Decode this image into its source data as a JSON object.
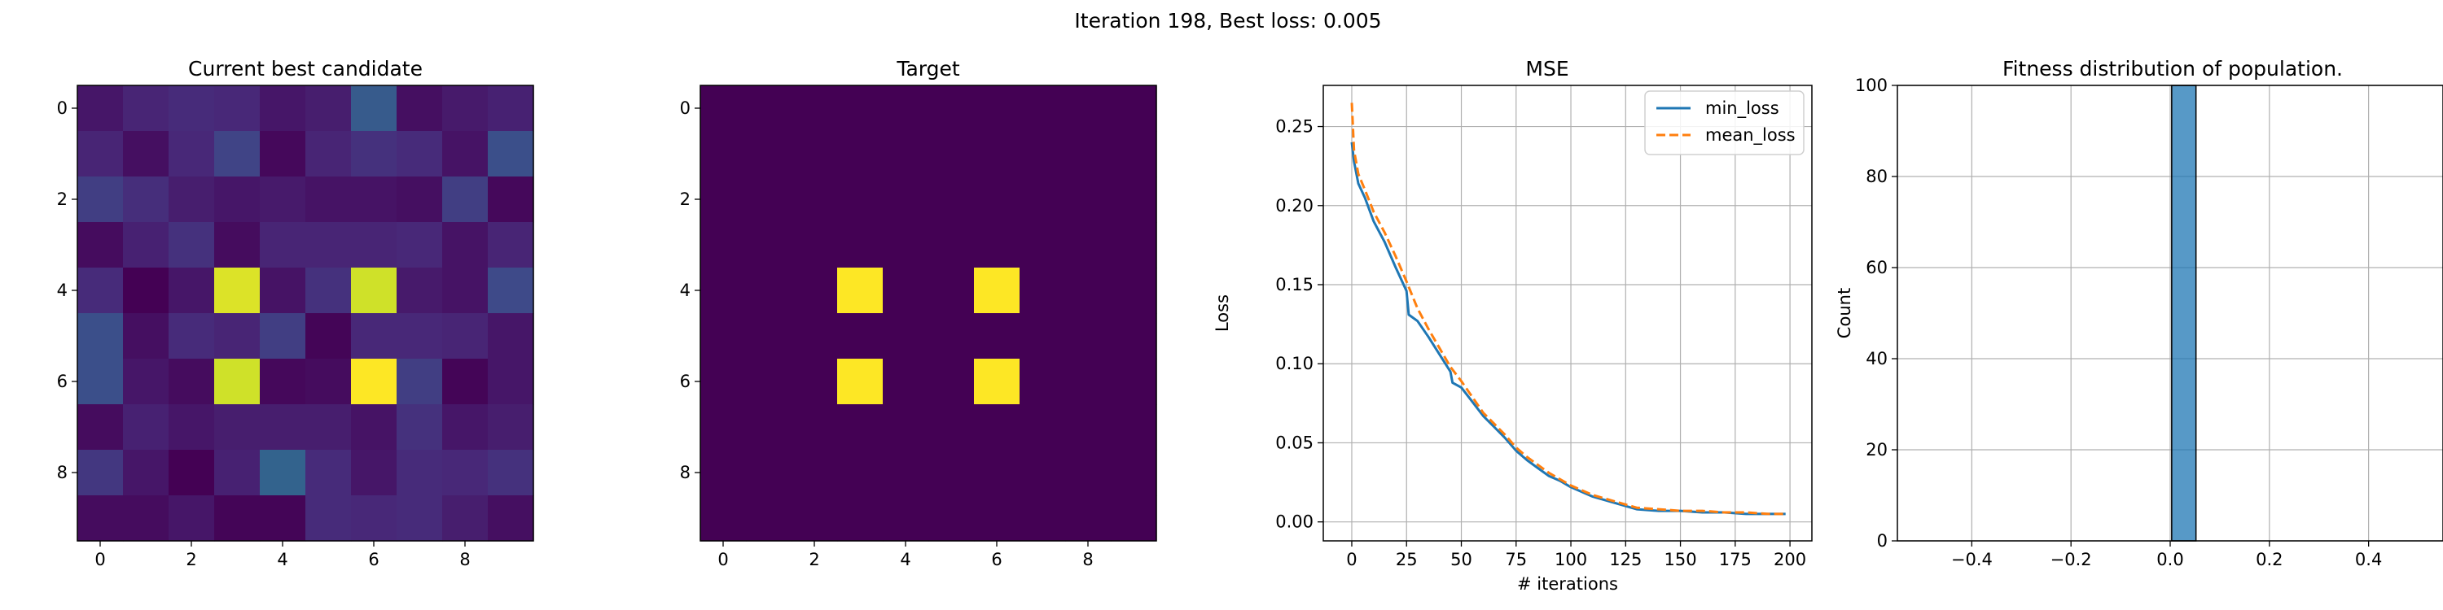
{
  "suptitle": "Iteration 198, Best loss: 0.005",
  "chart_data": [
    {
      "type": "heatmap",
      "title": "Current best candidate",
      "colormap": "viridis",
      "xticks": [
        "0",
        "2",
        "4",
        "6",
        "8"
      ],
      "yticks": [
        "0",
        "2",
        "4",
        "6",
        "8"
      ],
      "values": [
        [
          0.08,
          0.12,
          0.14,
          0.13,
          0.08,
          0.1,
          0.3,
          0.06,
          0.09,
          0.11
        ],
        [
          0.12,
          0.06,
          0.13,
          0.22,
          0.04,
          0.12,
          0.16,
          0.14,
          0.07,
          0.26
        ],
        [
          0.2,
          0.15,
          0.1,
          0.08,
          0.09,
          0.07,
          0.07,
          0.06,
          0.2,
          0.04
        ],
        [
          0.05,
          0.11,
          0.16,
          0.05,
          0.12,
          0.12,
          0.12,
          0.13,
          0.07,
          0.12
        ],
        [
          0.14,
          0.02,
          0.08,
          0.95,
          0.07,
          0.16,
          0.93,
          0.09,
          0.07,
          0.24
        ],
        [
          0.26,
          0.06,
          0.14,
          0.12,
          0.2,
          0.03,
          0.13,
          0.13,
          0.12,
          0.08
        ],
        [
          0.26,
          0.08,
          0.05,
          0.93,
          0.04,
          0.05,
          1.0,
          0.2,
          0.03,
          0.08
        ],
        [
          0.05,
          0.11,
          0.08,
          0.1,
          0.1,
          0.1,
          0.07,
          0.16,
          0.08,
          0.1
        ],
        [
          0.18,
          0.08,
          0.02,
          0.11,
          0.33,
          0.14,
          0.08,
          0.14,
          0.13,
          0.16
        ],
        [
          0.05,
          0.05,
          0.08,
          0.03,
          0.03,
          0.14,
          0.13,
          0.14,
          0.1,
          0.06
        ]
      ]
    },
    {
      "type": "heatmap",
      "title": "Target",
      "colormap": "viridis",
      "xticks": [
        "0",
        "2",
        "4",
        "6",
        "8"
      ],
      "yticks": [
        "0",
        "2",
        "4",
        "6",
        "8"
      ],
      "values": [
        [
          0,
          0,
          0,
          0,
          0,
          0,
          0,
          0,
          0,
          0
        ],
        [
          0,
          0,
          0,
          0,
          0,
          0,
          0,
          0,
          0,
          0
        ],
        [
          0,
          0,
          0,
          0,
          0,
          0,
          0,
          0,
          0,
          0
        ],
        [
          0,
          0,
          0,
          0,
          0,
          0,
          0,
          0,
          0,
          0
        ],
        [
          0,
          0,
          0,
          1,
          0,
          0,
          1,
          0,
          0,
          0
        ],
        [
          0,
          0,
          0,
          0,
          0,
          0,
          0,
          0,
          0,
          0
        ],
        [
          0,
          0,
          0,
          1,
          0,
          0,
          1,
          0,
          0,
          0
        ],
        [
          0,
          0,
          0,
          0,
          0,
          0,
          0,
          0,
          0,
          0
        ],
        [
          0,
          0,
          0,
          0,
          0,
          0,
          0,
          0,
          0,
          0
        ],
        [
          0,
          0,
          0,
          0,
          0,
          0,
          0,
          0,
          0,
          0
        ]
      ]
    },
    {
      "type": "line",
      "title": "MSE",
      "xlabel": "# iterations",
      "ylabel": "Loss",
      "xlim": [
        -13,
        210
      ],
      "ylim": [
        -0.012,
        0.276
      ],
      "xticks": [
        0,
        25,
        50,
        75,
        100,
        125,
        150,
        175,
        200
      ],
      "yticks": [
        0.0,
        0.05,
        0.1,
        0.15,
        0.2,
        0.25
      ],
      "grid": true,
      "legend": "upper right",
      "series": [
        {
          "name": "min_loss",
          "color": "#1f77b4",
          "style": "solid",
          "x": [
            0,
            1,
            3,
            6,
            10,
            15,
            20,
            25,
            26,
            30,
            35,
            40,
            45,
            46,
            50,
            55,
            60,
            65,
            70,
            75,
            80,
            85,
            90,
            95,
            100,
            110,
            120,
            130,
            140,
            150,
            160,
            170,
            180,
            190,
            198
          ],
          "y": [
            0.24,
            0.228,
            0.214,
            0.205,
            0.19,
            0.177,
            0.161,
            0.146,
            0.131,
            0.127,
            0.117,
            0.106,
            0.095,
            0.088,
            0.085,
            0.076,
            0.067,
            0.06,
            0.053,
            0.045,
            0.039,
            0.034,
            0.029,
            0.026,
            0.022,
            0.016,
            0.012,
            0.008,
            0.007,
            0.007,
            0.006,
            0.006,
            0.005,
            0.005,
            0.005
          ]
        },
        {
          "name": "mean_loss",
          "color": "#ff7f0e",
          "style": "dashed",
          "x": [
            0,
            1,
            3,
            6,
            10,
            15,
            20,
            25,
            30,
            35,
            40,
            45,
            50,
            55,
            60,
            65,
            70,
            75,
            80,
            85,
            90,
            95,
            100,
            110,
            120,
            130,
            140,
            150,
            160,
            170,
            180,
            190,
            198
          ],
          "y": [
            0.265,
            0.235,
            0.22,
            0.21,
            0.196,
            0.183,
            0.168,
            0.152,
            0.135,
            0.122,
            0.11,
            0.098,
            0.089,
            0.079,
            0.069,
            0.062,
            0.055,
            0.047,
            0.041,
            0.036,
            0.031,
            0.027,
            0.023,
            0.017,
            0.013,
            0.009,
            0.008,
            0.007,
            0.007,
            0.006,
            0.006,
            0.005,
            0.005
          ]
        }
      ]
    },
    {
      "type": "bar",
      "title": "Fitness distribution of population.",
      "xlabel": "",
      "ylabel": "Count",
      "xlim": [
        -0.55,
        0.55
      ],
      "ylim": [
        0,
        100
      ],
      "xticks": [
        "-0.4",
        "-0.2",
        "0.0",
        "0.2",
        "0.4"
      ],
      "yticks": [
        "0",
        "20",
        "40",
        "60",
        "80",
        "100"
      ],
      "grid": true,
      "bins": [
        {
          "x0": 0.003,
          "x1": 0.052,
          "count": 100
        }
      ],
      "color": "#1f77b4"
    }
  ]
}
